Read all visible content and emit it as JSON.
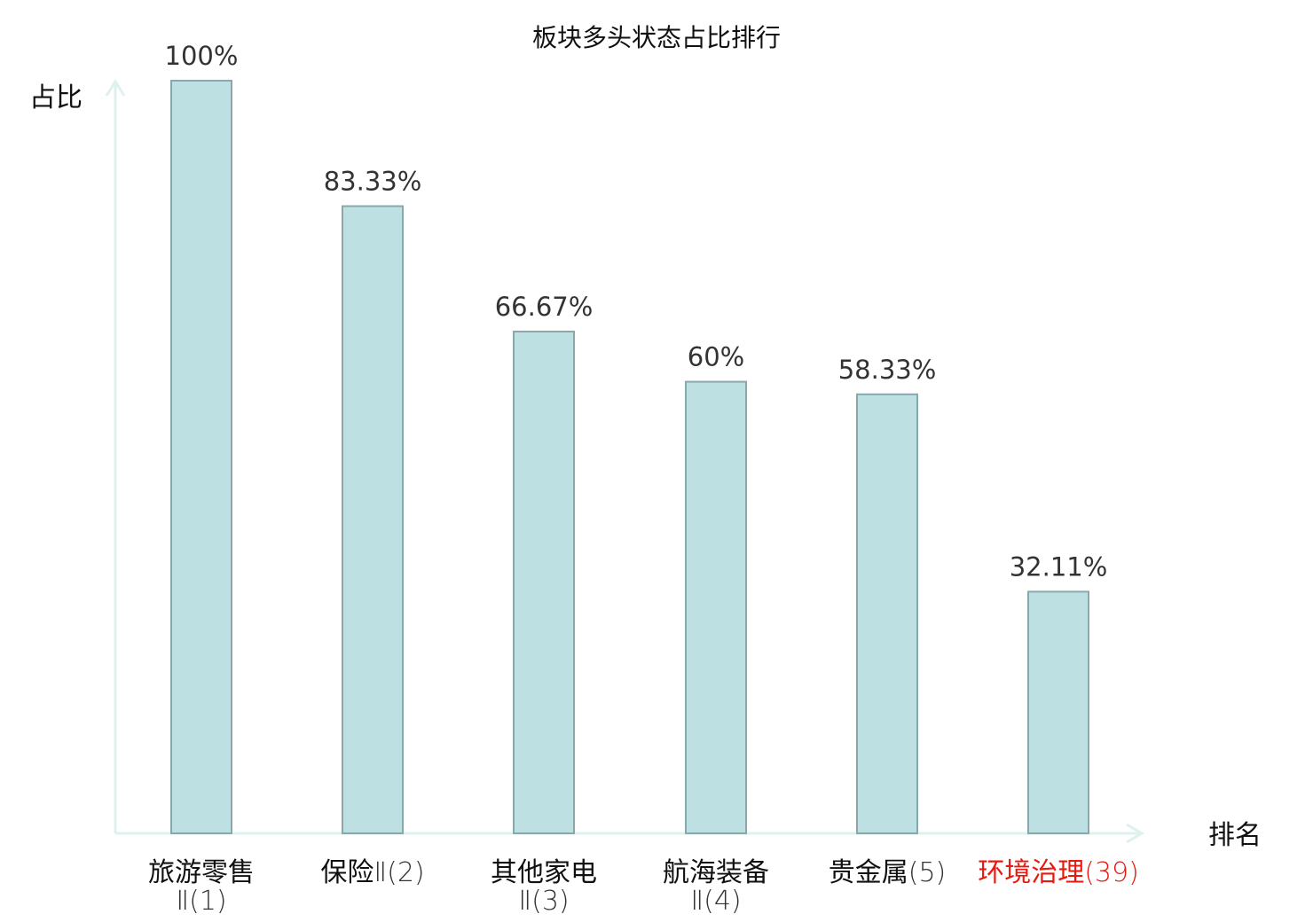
{
  "chart_data": {
    "type": "bar",
    "title": "板块多头状态占比排行",
    "ylabel": "占比",
    "xlabel": "排名",
    "ylim": [
      0,
      100
    ],
    "grid": false,
    "categories": [
      {
        "name": "旅游零售",
        "suffix": "Ⅱ(1)",
        "highlight": false
      },
      {
        "name": "保险",
        "suffix": "Ⅱ(2)",
        "highlight": false
      },
      {
        "name": "其他家电",
        "suffix": "Ⅱ(3)",
        "highlight": false
      },
      {
        "name": "航海装备",
        "suffix": "Ⅱ(4)",
        "highlight": false
      },
      {
        "name": "贵金属",
        "suffix": "(5)",
        "highlight": false
      },
      {
        "name": "环境治理",
        "suffix": "(39)",
        "highlight": true
      }
    ],
    "values": [
      100,
      83.33,
      66.67,
      60,
      58.33,
      32.11
    ],
    "value_labels": [
      "100%",
      "83.33%",
      "66.67%",
      "60%",
      "58.33%",
      "32.11%"
    ],
    "colors": {
      "bar_fill": "#bde0e3",
      "bar_stroke": "#8aa8ab",
      "axis": "#dff1ee",
      "highlight_text": "#e8190f"
    }
  }
}
